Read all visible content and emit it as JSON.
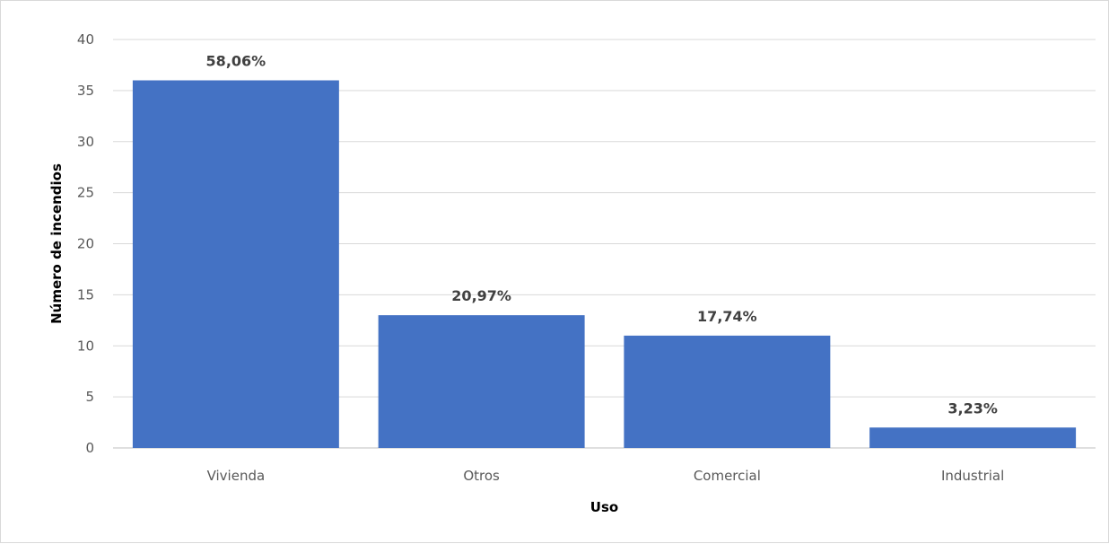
{
  "chart_data": {
    "type": "bar",
    "title": "",
    "xlabel": "Uso",
    "ylabel": "Número de incendios",
    "categories": [
      "Vivienda",
      "Otros",
      "Comercial",
      "Industrial"
    ],
    "values": [
      36,
      13,
      11,
      2
    ],
    "data_labels": [
      "58,06%",
      "20,97%",
      "17,74%",
      "3,23%"
    ],
    "ylim": [
      0,
      40
    ],
    "yticks": [
      "0",
      "5",
      "10",
      "15",
      "20",
      "25",
      "30",
      "35",
      "40"
    ],
    "grid": true,
    "legend": "none",
    "bar_color": "#4472C4"
  }
}
